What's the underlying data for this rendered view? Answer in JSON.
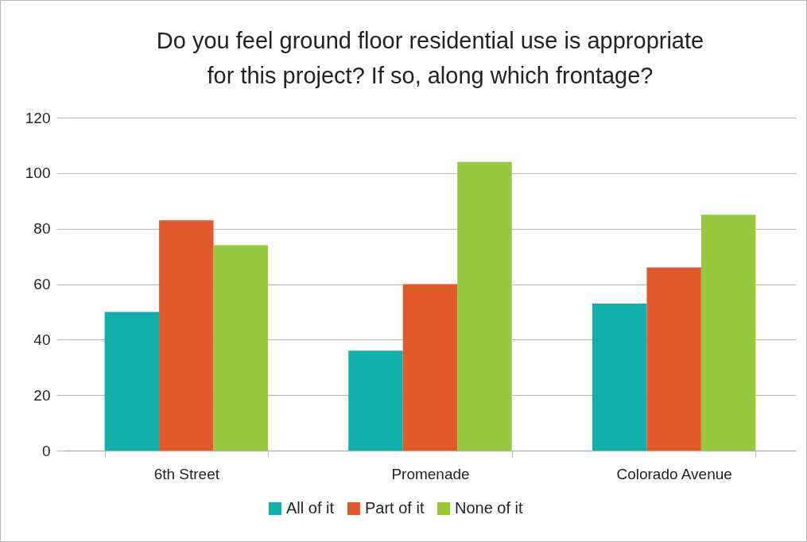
{
  "chart_data": {
    "type": "bar",
    "title": "Do you feel ground floor residential use is appropriate for this project?  If so, along which frontage?",
    "categories": [
      "6th Street",
      "Promenade",
      "Colorado Avenue"
    ],
    "series": [
      {
        "name": "All of it",
        "color": "#13b0ab",
        "values": [
          50,
          36,
          53
        ]
      },
      {
        "name": "Part of it",
        "color": "#e05a2b",
        "values": [
          83,
          60,
          66
        ]
      },
      {
        "name": "None of it",
        "color": "#97c83f",
        "values": [
          74,
          104,
          85
        ]
      }
    ],
    "ylim": [
      0,
      120
    ],
    "yticks": [
      0,
      20,
      40,
      60,
      80,
      100,
      120
    ],
    "grid": "y",
    "legend": "bottom"
  }
}
